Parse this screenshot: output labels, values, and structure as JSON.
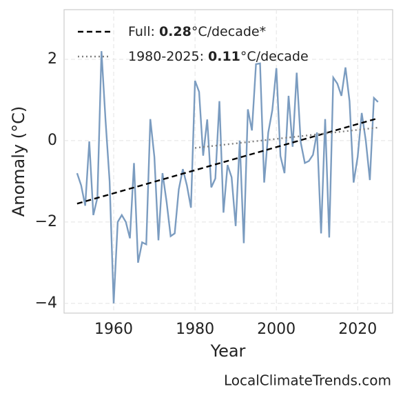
{
  "chart_data": {
    "type": "line",
    "xlabel": "Year",
    "ylabel": "Anomaly (°C)",
    "source": "LocalClimateTrends.com",
    "xlim": [
      1947.8,
      2028.6
    ],
    "ylim": [
      -4.24,
      3.22
    ],
    "xticks": [
      1960,
      1980,
      2000,
      2020
    ],
    "yticks": [
      {
        "value": -4,
        "label": "−4"
      },
      {
        "value": -2,
        "label": "−2"
      },
      0,
      2
    ],
    "grid": true,
    "legend": "upper left",
    "series": [
      {
        "x": [
          1951,
          1952,
          1953,
          1954,
          1955,
          1956,
          1957,
          1958,
          1959,
          1960,
          1961,
          1962,
          1963,
          1964,
          1965,
          1966,
          1967,
          1968,
          1969,
          1970,
          1971,
          1972,
          1973,
          1974,
          1975,
          1976,
          1977,
          1978,
          1979,
          1980,
          1981,
          1982,
          1983,
          1984,
          1985,
          1986,
          1987,
          1988,
          1989,
          1990,
          1991,
          1992,
          1993,
          1994,
          1995,
          1996,
          1997,
          1998,
          1999,
          2000,
          2001,
          2002,
          2003,
          2004,
          2005,
          2006,
          2007,
          2008,
          2009,
          2010,
          2011,
          2012,
          2013,
          2014,
          2015,
          2016,
          2017,
          2018,
          2019,
          2020,
          2021,
          2022,
          2023,
          2024,
          2025
        ],
        "values": [
          -0.8,
          -1.1,
          -1.6,
          -0.02,
          -1.83,
          -1.4,
          2.2,
          0.5,
          -1.0,
          -4.0,
          -2.0,
          -1.83,
          -2.0,
          -2.4,
          -0.55,
          -3.0,
          -2.5,
          -2.55,
          0.53,
          -0.4,
          -2.45,
          -0.8,
          -1.5,
          -2.35,
          -2.28,
          -1.2,
          -0.7,
          -1.1,
          -1.65,
          1.47,
          1.2,
          -0.37,
          0.52,
          -1.15,
          -0.93,
          0.97,
          -1.77,
          -0.6,
          -0.9,
          -2.1,
          0.0,
          -2.52,
          0.77,
          0.25,
          1.88,
          1.9,
          -1.03,
          0.2,
          0.75,
          1.78,
          -0.38,
          -0.8,
          1.1,
          -0.15,
          1.67,
          -0.05,
          -0.55,
          -0.5,
          -0.35,
          0.2,
          -2.28,
          0.53,
          -2.38,
          1.55,
          1.4,
          1.1,
          1.8,
          0.97,
          -1.03,
          -0.4,
          0.68,
          0.0,
          -0.97,
          1.05,
          0.95
        ],
        "color": "#7b9cc0",
        "dash": "solid"
      },
      {
        "name": [
          "Full: ",
          "0.28",
          "°C/decade*"
        ],
        "bold_part": 1,
        "x": [
          1951,
          2025
        ],
        "values": [
          -1.55,
          0.55
        ],
        "color": "#000000",
        "dash": "dashed"
      },
      {
        "name": [
          "1980-2025: ",
          "0.11",
          "°C/decade"
        ],
        "bold_part": 1,
        "x": [
          1980,
          2025
        ],
        "values": [
          -0.18,
          0.32
        ],
        "color": "#808080",
        "dash": "dotted"
      }
    ]
  }
}
